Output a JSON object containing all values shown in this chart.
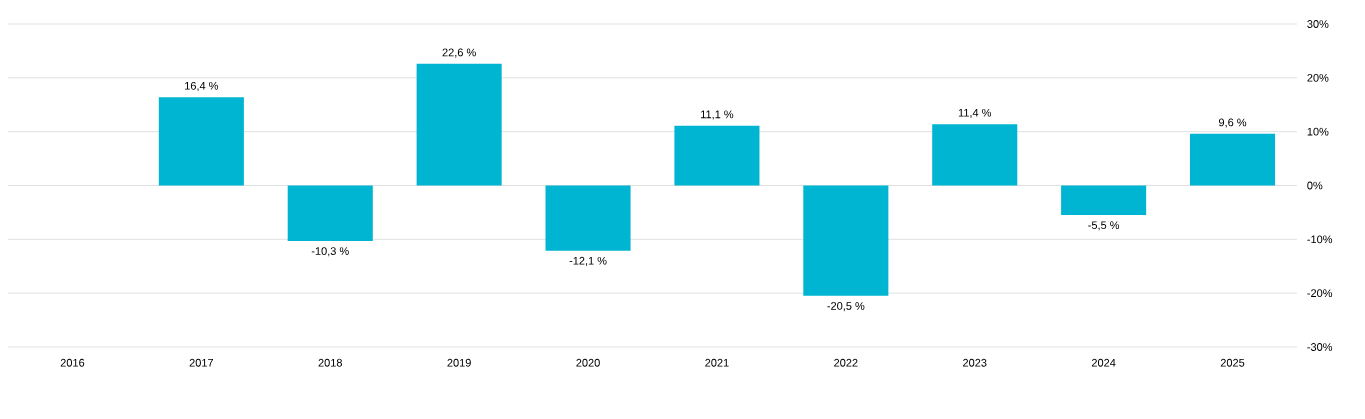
{
  "chart_data": {
    "type": "bar",
    "categories": [
      "2016",
      "2017",
      "2018",
      "2019",
      "2020",
      "2021",
      "2022",
      "2023",
      "2024",
      "2025"
    ],
    "values": [
      null,
      16.4,
      -10.3,
      22.6,
      -12.1,
      11.1,
      -20.5,
      11.4,
      -5.5,
      9.6
    ],
    "value_labels": [
      null,
      "16,4 %",
      "-10,3 %",
      "22,6 %",
      "-12,1 %",
      "11,1 %",
      "-20,5 %",
      "11,4 %",
      "-5,5 %",
      "9,6 %"
    ],
    "color": "#00b5d1",
    "ylim": [
      -30,
      30
    ],
    "yticks": [
      {
        "value": -30,
        "label": "-30%"
      },
      {
        "value": -20,
        "label": "-20%"
      },
      {
        "value": -10,
        "label": "-10%"
      },
      {
        "value": 0,
        "label": "0%"
      },
      {
        "value": 10,
        "label": "10%"
      },
      {
        "value": 20,
        "label": "20%"
      },
      {
        "value": 30,
        "label": "30%"
      }
    ],
    "grid": "y"
  }
}
